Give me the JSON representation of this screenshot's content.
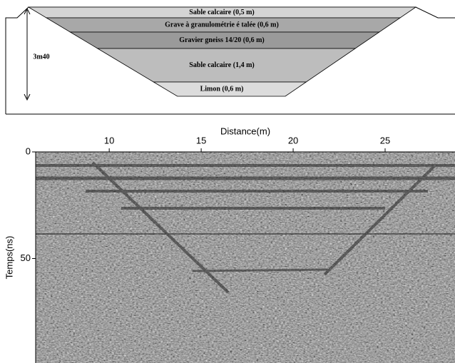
{
  "diagram": {
    "layers": [
      "Sable calcaire (0,5 m)",
      "Grave à granulométrie é talée (0,6 m)",
      "Gravier gneiss 14/20 (0,6 m)",
      "Sable calcaire (1,4 m)",
      "Limon (0,6 m)"
    ],
    "depth_label": "3m40"
  },
  "radargram": {
    "xlabel": "Distance(m)",
    "ylabel": "Temps(ns)",
    "xlim": [
      6,
      28.8
    ],
    "xticks": [
      10,
      15,
      20,
      25
    ],
    "ylim": [
      0,
      99
    ],
    "yticks": [
      0,
      50
    ]
  }
}
